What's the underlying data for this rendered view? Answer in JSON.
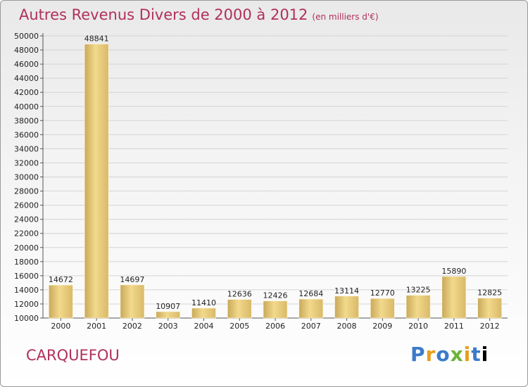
{
  "chart_data": {
    "type": "bar",
    "title": "Autres Revenus Divers de 2000 à 2012",
    "subtitle": "(en milliers d'€)",
    "categories": [
      "2000",
      "2001",
      "2002",
      "2003",
      "2004",
      "2005",
      "2006",
      "2007",
      "2008",
      "2009",
      "2010",
      "2011",
      "2012"
    ],
    "values": [
      14672,
      48841,
      14697,
      10907,
      11410,
      12636,
      12426,
      12684,
      13114,
      12770,
      13225,
      15890,
      12825
    ],
    "ylim": [
      10000,
      50000
    ],
    "yticks": [
      10000,
      12000,
      14000,
      16000,
      18000,
      20000,
      22000,
      24000,
      26000,
      28000,
      30000,
      32000,
      34000,
      36000,
      38000,
      40000,
      42000,
      44000,
      46000,
      48000,
      50000
    ],
    "grid": true,
    "bar_color": "#e8c878",
    "axis_color": "#555555"
  },
  "footer": {
    "city": "CARQUEFOU",
    "brand_letters": [
      "P",
      "r",
      "o",
      "x",
      "i",
      "t",
      "i"
    ]
  }
}
